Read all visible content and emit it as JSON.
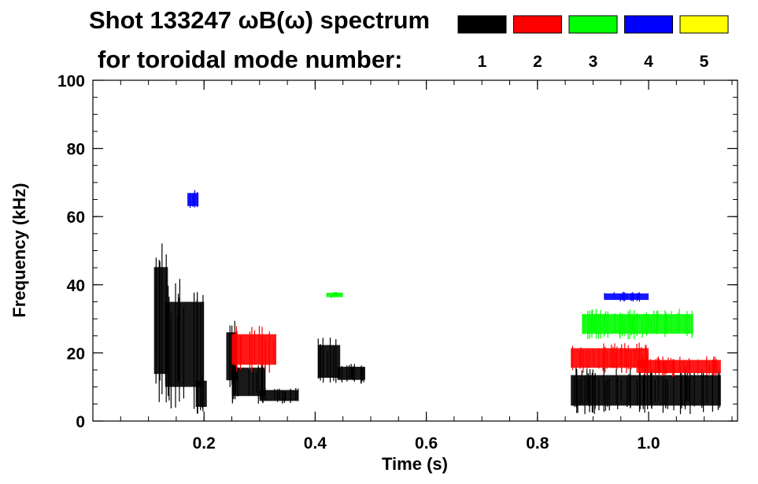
{
  "chart_data": {
    "type": "heatmap",
    "title_line1": "Shot 133247 ωB(ω) spectrum",
    "title_line2": "for toroidal mode number:",
    "xlabel": "Time (s)",
    "ylabel": "Frequency (kHz)",
    "xlim": [
      0.0,
      1.16
    ],
    "ylim": [
      0,
      100
    ],
    "x_ticks": [
      {
        "value": 0.2,
        "label": "0.2"
      },
      {
        "value": 0.4,
        "label": "0.4"
      },
      {
        "value": 0.6,
        "label": "0.6"
      },
      {
        "value": 0.8,
        "label": "0.8"
      },
      {
        "value": 1.0,
        "label": "1.0"
      }
    ],
    "y_ticks": [
      {
        "value": 0,
        "label": "0"
      },
      {
        "value": 20,
        "label": "20"
      },
      {
        "value": 40,
        "label": "40"
      },
      {
        "value": 60,
        "label": "60"
      },
      {
        "value": 80,
        "label": "80"
      },
      {
        "value": 100,
        "label": "100"
      }
    ],
    "legend": [
      {
        "mode": "1",
        "color": "#000000"
      },
      {
        "mode": "2",
        "color": "#ff0000"
      },
      {
        "mode": "3",
        "color": "#00ff00"
      },
      {
        "mode": "4",
        "color": "#0000ff"
      },
      {
        "mode": "5",
        "color": "#ffff00"
      }
    ],
    "series": [
      {
        "name": "n=1",
        "color": "#000000",
        "blobs": [
          {
            "t": [
              0.11,
              0.135
            ],
            "f": [
              5,
              54
            ]
          },
          {
            "t": [
              0.13,
              0.2
            ],
            "f": [
              3,
              42
            ]
          },
          {
            "t": [
              0.185,
              0.205
            ],
            "f": [
              2,
              14
            ]
          },
          {
            "t": [
              0.24,
              0.26
            ],
            "f": [
              8,
              30
            ]
          },
          {
            "t": [
              0.25,
              0.31
            ],
            "f": [
              5,
              18
            ]
          },
          {
            "t": [
              0.3,
              0.37
            ],
            "f": [
              5,
              10
            ]
          },
          {
            "t": [
              0.405,
              0.445
            ],
            "f": [
              10,
              25
            ]
          },
          {
            "t": [
              0.44,
              0.49
            ],
            "f": [
              11,
              17
            ]
          },
          {
            "t": [
              0.86,
              1.13
            ],
            "f": [
              2,
              16
            ]
          }
        ]
      },
      {
        "name": "n=2",
        "color": "#ff0000",
        "blobs": [
          {
            "t": [
              0.25,
              0.33
            ],
            "f": [
              14,
              28
            ]
          },
          {
            "t": [
              0.86,
              1.0
            ],
            "f": [
              14,
              23
            ]
          },
          {
            "t": [
              0.98,
              1.13
            ],
            "f": [
              13,
              19
            ]
          }
        ]
      },
      {
        "name": "n=3",
        "color": "#00ff00",
        "blobs": [
          {
            "t": [
              0.88,
              1.08
            ],
            "f": [
              24,
              33
            ]
          },
          {
            "t": [
              0.42,
              0.45
            ],
            "f": [
              36,
              38
            ]
          }
        ]
      },
      {
        "name": "n=4",
        "color": "#0000ff",
        "blobs": [
          {
            "t": [
              0.92,
              1.0
            ],
            "f": [
              35,
              38
            ]
          },
          {
            "t": [
              0.17,
              0.19
            ],
            "f": [
              62,
              68
            ]
          }
        ]
      }
    ]
  }
}
